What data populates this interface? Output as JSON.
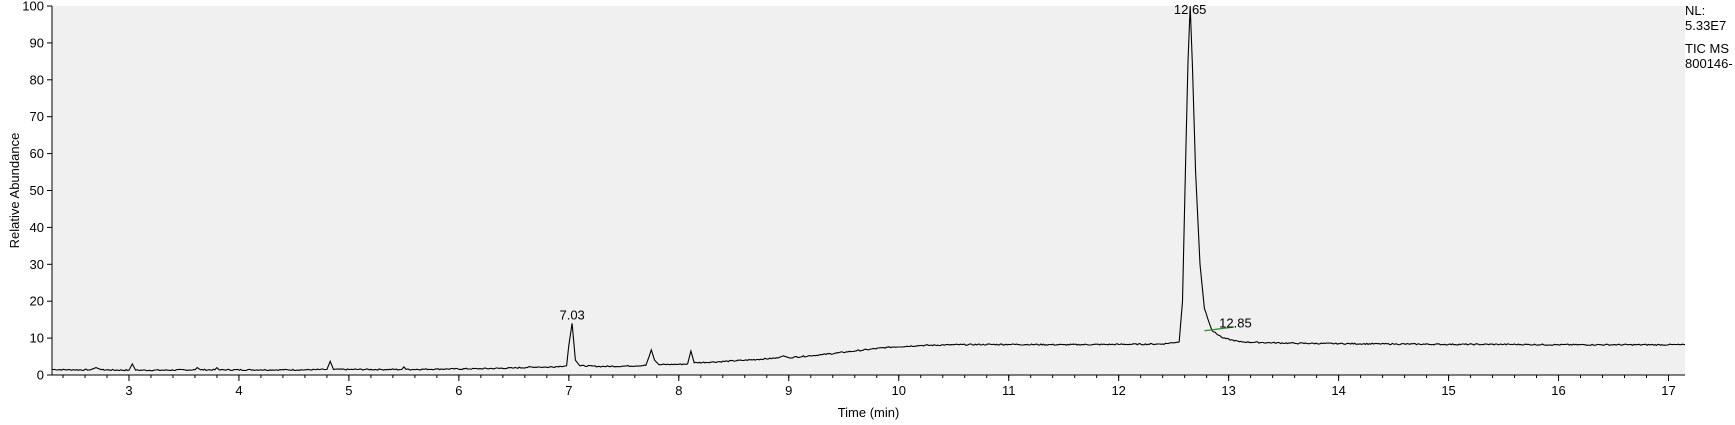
{
  "chart_data": {
    "type": "line",
    "title": "",
    "xlabel": "Time (min)",
    "ylabel": "Relative Abundance",
    "xlim": [
      2.3,
      17.15
    ],
    "ylim": [
      0,
      100
    ],
    "x_ticks": [
      3,
      4,
      5,
      6,
      7,
      8,
      9,
      10,
      11,
      12,
      13,
      14,
      15,
      16,
      17
    ],
    "y_ticks": [
      0,
      10,
      20,
      30,
      40,
      50,
      60,
      70,
      80,
      90,
      100
    ],
    "grid": false,
    "background_color": "#f0f0f0",
    "trace_color": "#000000",
    "integration_color": "#2e8b2e",
    "series": [
      {
        "x": [
          2.3,
          2.5,
          2.65,
          2.7,
          2.75,
          3.0,
          3.03,
          3.06,
          3.3,
          3.6,
          3.62,
          3.65,
          3.78,
          3.8,
          3.82,
          4.2,
          4.6,
          4.8,
          4.83,
          4.86,
          5.0,
          5.3,
          5.48,
          5.5,
          5.52,
          5.8,
          6.2,
          6.5,
          6.72,
          6.8,
          6.98,
          7.0,
          7.03,
          7.06,
          7.1,
          7.3,
          7.5,
          7.7,
          7.73,
          7.75,
          7.78,
          7.82,
          8.0,
          8.08,
          8.11,
          8.14,
          8.3,
          8.6,
          8.9,
          8.95,
          9.0,
          9.3,
          9.6,
          9.9,
          10.2,
          10.5,
          11.0,
          11.5,
          12.0,
          12.4,
          12.55,
          12.58,
          12.61,
          12.63,
          12.65,
          12.67,
          12.7,
          12.74,
          12.78,
          12.85,
          12.95,
          13.1,
          13.3,
          13.6,
          14.0,
          14.5,
          15.0,
          15.5,
          16.0,
          16.5,
          17.0,
          17.15
        ],
        "y": [
          1.5,
          1.4,
          1.4,
          2.0,
          1.4,
          1.3,
          3.0,
          1.3,
          1.3,
          1.4,
          2.0,
          1.4,
          1.4,
          2.0,
          1.4,
          1.4,
          1.4,
          1.5,
          3.7,
          1.5,
          1.5,
          1.5,
          1.5,
          2.2,
          1.5,
          1.6,
          1.7,
          1.9,
          2.2,
          2.1,
          2.5,
          8.0,
          14.0,
          4.0,
          2.5,
          2.3,
          2.4,
          2.6,
          5.0,
          6.8,
          4.0,
          2.8,
          2.9,
          3.0,
          6.5,
          3.3,
          3.5,
          4.0,
          4.6,
          5.2,
          4.7,
          5.5,
          6.5,
          7.5,
          8.0,
          8.2,
          8.3,
          8.2,
          8.3,
          8.4,
          9.0,
          20.0,
          60.0,
          85.0,
          100.0,
          84.0,
          55.0,
          30.0,
          18.0,
          12.0,
          10.0,
          9.0,
          8.8,
          8.6,
          8.5,
          8.4,
          8.3,
          8.3,
          8.2,
          8.2,
          8.2,
          8.2
        ]
      }
    ],
    "annotations": [
      {
        "label": "7.03",
        "x": 7.03,
        "y": 14.0
      },
      {
        "label": "12.65",
        "x": 12.65,
        "y": 100.0
      },
      {
        "label": "12.85",
        "x": 12.85,
        "y": 12.0
      }
    ],
    "integration_line": {
      "x": [
        12.78,
        13.05
      ],
      "y": [
        12.0,
        13.0
      ]
    }
  },
  "info": {
    "nl_label": "NL:",
    "nl_value": "5.33E7",
    "scan_filter": "TIC  MS",
    "file_name": "800146-"
  }
}
